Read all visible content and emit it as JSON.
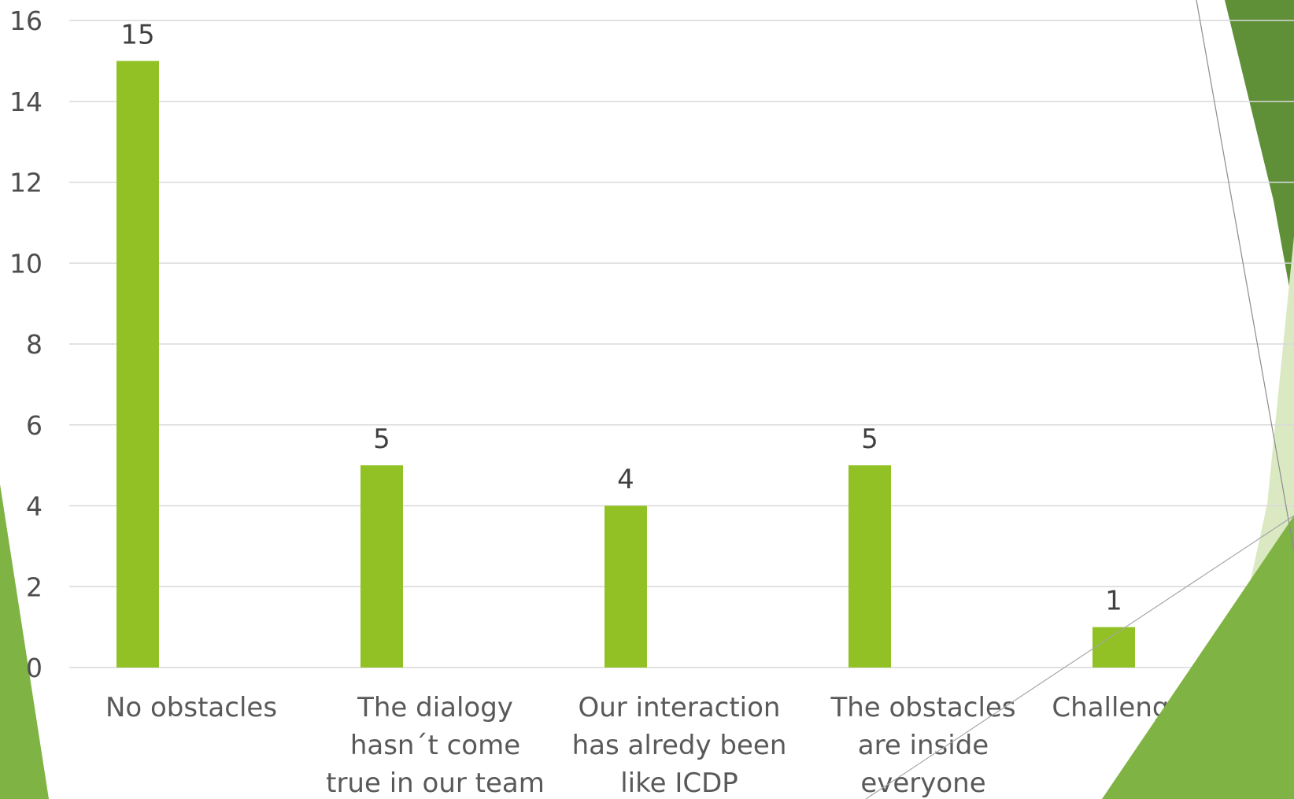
{
  "chart_data": {
    "type": "bar",
    "categories": [
      [
        "No obstacles"
      ],
      [
        "The dialogy",
        "hasn´t come",
        "true in our team"
      ],
      [
        "Our interaction",
        "has alredy been",
        "like ICDP"
      ],
      [
        "The obstacles",
        "are inside",
        "everyone"
      ],
      [
        "Challenging child"
      ]
    ],
    "values": [
      15,
      5,
      4,
      5,
      1
    ],
    "data_labels": [
      "15",
      "5",
      "4",
      "5",
      "1"
    ],
    "ylim": [
      0,
      16
    ],
    "yticks": [
      0,
      2,
      4,
      6,
      8,
      10,
      12,
      14,
      16
    ],
    "grid": true,
    "bar_color": "#92c126",
    "grid_color": "#d9d9d9",
    "title": "",
    "xlabel": "",
    "ylabel": ""
  },
  "decoration": {
    "accent_dark": "#5f9038",
    "accent_mid": "#7fb343",
    "accent_light": "#dbe9c3"
  }
}
